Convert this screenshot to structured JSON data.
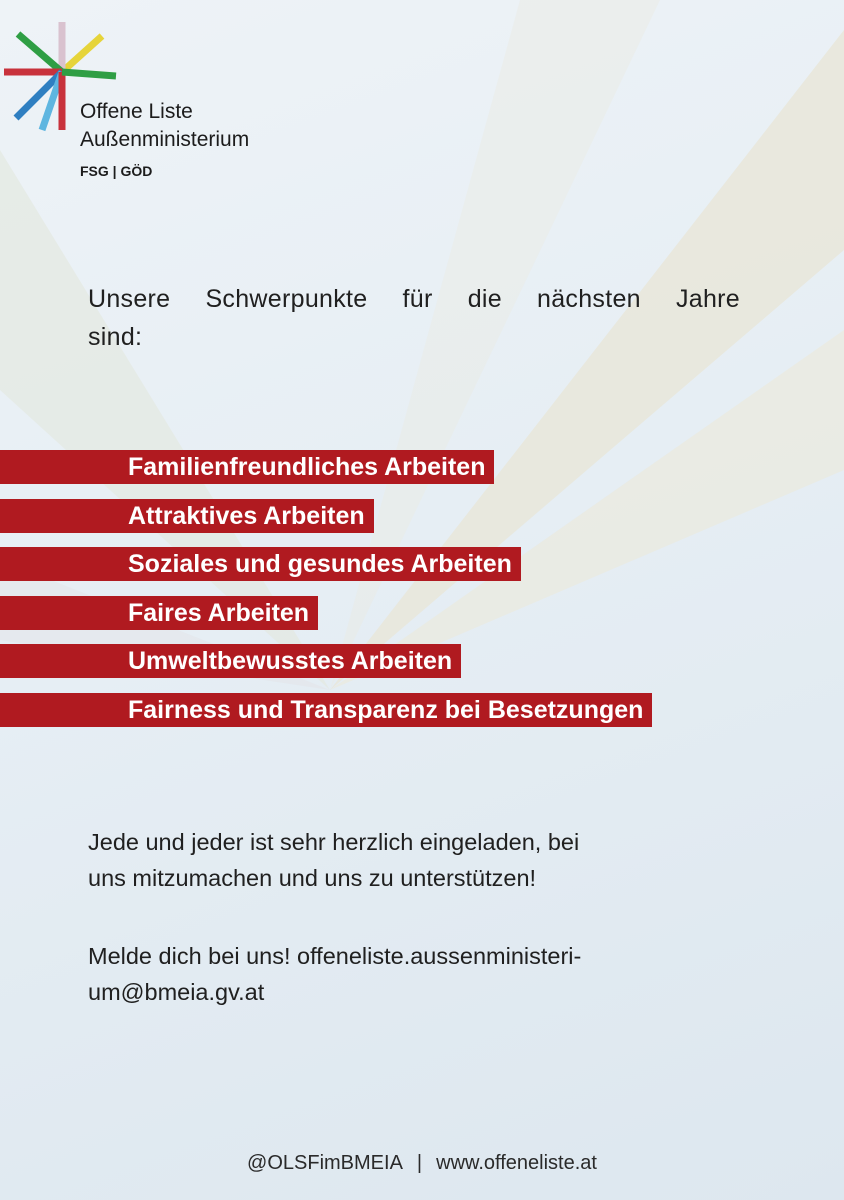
{
  "logo": {
    "line1": "Offene Liste",
    "line2": "Außenministerium",
    "line3": "FSG | GÖD"
  },
  "intro": {
    "line1": "Unsere Schwerpunkte für die nächsten Jahre",
    "line2": "sind:"
  },
  "priorities": [
    "Familienfreundliches Arbeiten",
    "Attraktives Arbeiten",
    "Soziales und gesundes Arbeiten",
    "Faires Arbeiten",
    "Umweltbewusstes Arbeiten",
    "Fairness und Transparenz bei Besetzungen"
  ],
  "invitation": {
    "line1": "Jede und jeder ist sehr herzlich eingeladen, bei",
    "line2": "uns mitzumachen und uns zu unterstützen!"
  },
  "contact": {
    "line1": "Melde dich bei uns! offeneliste.aussenministeri-",
    "line2": "um@bmeia.gv.at"
  },
  "footer": {
    "handle": "@OLSFimBMEIA",
    "separator": "|",
    "website": "www.offeneliste.at"
  },
  "colors": {
    "accent_red": "#b01a20",
    "logo_green": "#2f9e44",
    "logo_yellow": "#e6d43a",
    "logo_red": "#c8323c",
    "logo_blue": "#2f7fc1",
    "logo_lightblue": "#5fb6e0"
  }
}
